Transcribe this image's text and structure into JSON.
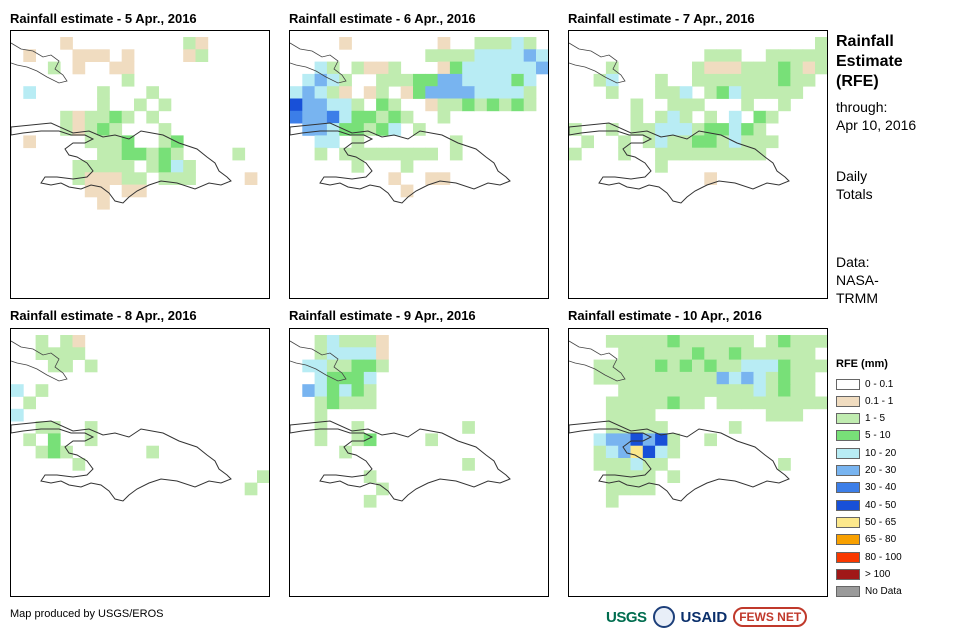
{
  "panels": [
    {
      "title": "Rainfall estimate - 5 Apr., 2016"
    },
    {
      "title": "Rainfall estimate - 6 Apr., 2016"
    },
    {
      "title": "Rainfall estimate - 7 Apr., 2016"
    },
    {
      "title": "Rainfall estimate - 8 Apr., 2016"
    },
    {
      "title": "Rainfall estimate - 9 Apr., 2016"
    },
    {
      "title": "Rainfall estimate - 10 Apr., 2016"
    }
  ],
  "side": {
    "title_lines": [
      "Rainfall",
      "Estimate",
      "(RFE)"
    ],
    "through_label": "through:",
    "through_date": "Apr 10, 2016",
    "period_lines": [
      "Daily",
      "Totals"
    ],
    "data_lines": [
      "Data:",
      "NASA-",
      "TRMM"
    ]
  },
  "legend": {
    "title": "RFE (mm)",
    "items": [
      {
        "label": "0 - 0.1",
        "color": "#ffffff"
      },
      {
        "label": "0.1 - 1",
        "color": "#f0dcc0"
      },
      {
        "label": "1 - 5",
        "color": "#c0ecb0"
      },
      {
        "label": "5 - 10",
        "color": "#78e078"
      },
      {
        "label": "10 - 20",
        "color": "#b8ecf4"
      },
      {
        "label": "20 - 30",
        "color": "#78b4f0"
      },
      {
        "label": "30 - 40",
        "color": "#3c7ee8"
      },
      {
        "label": "40 - 50",
        "color": "#1850d8"
      },
      {
        "label": "50 - 65",
        "color": "#fce88c"
      },
      {
        "label": "65 - 80",
        "color": "#f8a000"
      },
      {
        "label": "80 - 100",
        "color": "#f83800"
      },
      {
        "label": "> 100",
        "color": "#a01818"
      },
      {
        "label": "No Data",
        "color": "#9a9a9a"
      }
    ]
  },
  "footer": {
    "credit": "Map produced by USGS/EROS",
    "logos": {
      "usgs": "USGS",
      "usaid": "USAID",
      "fews": "FEWS NET"
    }
  }
}
